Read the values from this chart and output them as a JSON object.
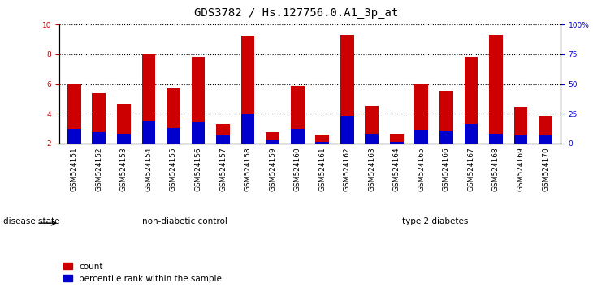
{
  "title": "GDS3782 / Hs.127756.0.A1_3p_at",
  "samples": [
    "GSM524151",
    "GSM524152",
    "GSM524153",
    "GSM524154",
    "GSM524155",
    "GSM524156",
    "GSM524157",
    "GSM524158",
    "GSM524159",
    "GSM524160",
    "GSM524161",
    "GSM524162",
    "GSM524163",
    "GSM524164",
    "GSM524165",
    "GSM524166",
    "GSM524167",
    "GSM524168",
    "GSM524169",
    "GSM524170"
  ],
  "count_values": [
    6.0,
    5.35,
    4.65,
    8.0,
    5.72,
    7.82,
    3.28,
    9.25,
    2.78,
    5.85,
    2.62,
    9.28,
    4.52,
    2.68,
    6.0,
    5.52,
    7.8,
    9.3,
    4.45,
    3.85
  ],
  "percentile_values": [
    3.0,
    2.75,
    2.68,
    3.5,
    3.02,
    3.45,
    2.55,
    4.0,
    2.2,
    3.0,
    2.1,
    3.85,
    2.68,
    2.1,
    2.9,
    2.85,
    3.3,
    2.68,
    2.62,
    2.55
  ],
  "count_color": "#cc0000",
  "percentile_color": "#0000cc",
  "bar_width": 0.55,
  "ylim_left": [
    2,
    10
  ],
  "ylim_right": [
    0,
    100
  ],
  "yticks_left": [
    2,
    4,
    6,
    8,
    10
  ],
  "yticks_right": [
    0,
    25,
    50,
    75,
    100
  ],
  "ytick_right_labels": [
    "0",
    "25",
    "50",
    "75",
    "100%"
  ],
  "grid_color": "black",
  "group1_label": "non-diabetic control",
  "group2_label": "type 2 diabetes",
  "group1_color": "#ccffcc",
  "group2_color": "#55cc55",
  "disease_state_label": "disease state",
  "legend_count": "count",
  "legend_percentile": "percentile rank within the sample",
  "bg_color": "#ffffff",
  "xtick_bg_color": "#d8d8d8",
  "tick_label_fontsize": 6.5,
  "title_fontsize": 10,
  "legend_fontsize": 7.5
}
